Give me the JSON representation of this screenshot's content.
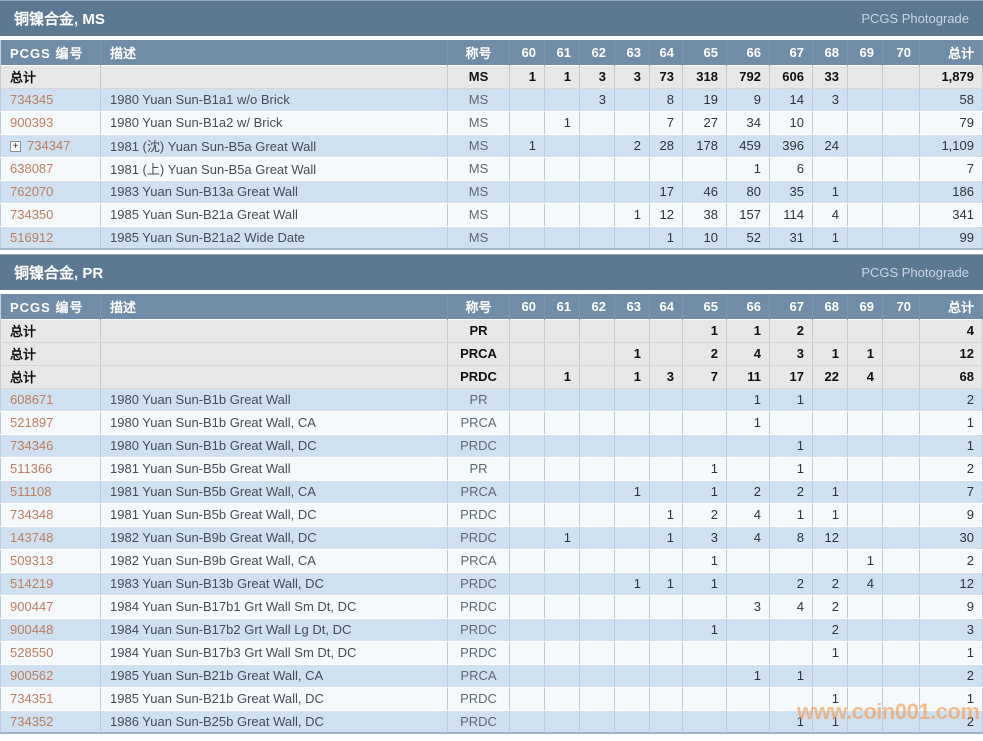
{
  "watermark": "www.coin001.com",
  "photograde_label": "PCGS Photograde",
  "total_label": "总计",
  "expand_glyph": "+",
  "colors": {
    "section_header_bg": "#5d7891",
    "column_header_bg": "#708ca6",
    "total_row_bg": "#e7e7e7",
    "row_blue": "#cfe1f0",
    "row_white": "#f5f9fc",
    "id_link": "#bc7d60",
    "watermark_orange": "#f3984d"
  },
  "columns": {
    "id": "PCGS 编号",
    "desc": "描述",
    "designation": "称号",
    "grades": [
      "60",
      "61",
      "62",
      "63",
      "64",
      "65",
      "66",
      "67",
      "68",
      "69",
      "70"
    ],
    "total": "总计"
  },
  "sections": [
    {
      "title": "铜镍合金, MS",
      "totals": [
        {
          "designation": "MS",
          "grades": [
            "1",
            "1",
            "3",
            "3",
            "73",
            "318",
            "792",
            "606",
            "33",
            "",
            ""
          ],
          "total": "1,879"
        }
      ],
      "rows": [
        {
          "id": "734345",
          "expandable": false,
          "desc": "1980 Yuan Sun-B1a1 w/o Brick",
          "designation": "MS",
          "grades": [
            "",
            "",
            "3",
            "",
            "8",
            "19",
            "9",
            "14",
            "3",
            "",
            ""
          ],
          "total": "58"
        },
        {
          "id": "900393",
          "expandable": false,
          "desc": "1980 Yuan Sun-B1a2 w/ Brick",
          "designation": "MS",
          "grades": [
            "",
            "1",
            "",
            "",
            "7",
            "27",
            "34",
            "10",
            "",
            "",
            ""
          ],
          "total": "79"
        },
        {
          "id": "734347",
          "expandable": true,
          "desc": "1981 (沈) Yuan Sun-B5a Great Wall",
          "designation": "MS",
          "grades": [
            "1",
            "",
            "",
            "2",
            "28",
            "178",
            "459",
            "396",
            "24",
            "",
            ""
          ],
          "total": "1,109"
        },
        {
          "id": "638087",
          "expandable": false,
          "desc": "1981 (上) Yuan Sun-B5a Great Wall",
          "designation": "MS",
          "grades": [
            "",
            "",
            "",
            "",
            "",
            "",
            "1",
            "6",
            "",
            "",
            ""
          ],
          "total": "7"
        },
        {
          "id": "762070",
          "expandable": false,
          "desc": "1983 Yuan Sun-B13a Great Wall",
          "designation": "MS",
          "grades": [
            "",
            "",
            "",
            "",
            "17",
            "46",
            "80",
            "35",
            "1",
            "",
            ""
          ],
          "total": "186"
        },
        {
          "id": "734350",
          "expandable": false,
          "desc": "1985 Yuan Sun-B21a Great Wall",
          "designation": "MS",
          "grades": [
            "",
            "",
            "",
            "1",
            "12",
            "38",
            "157",
            "114",
            "4",
            "",
            ""
          ],
          "total": "341"
        },
        {
          "id": "516912",
          "expandable": false,
          "desc": "1985 Yuan Sun-B21a2 Wide Date",
          "designation": "MS",
          "grades": [
            "",
            "",
            "",
            "",
            "1",
            "10",
            "52",
            "31",
            "1",
            "",
            ""
          ],
          "total": "99"
        }
      ]
    },
    {
      "title": "铜镍合金, PR",
      "totals": [
        {
          "designation": "PR",
          "grades": [
            "",
            "",
            "",
            "",
            "",
            "1",
            "1",
            "2",
            "",
            "",
            ""
          ],
          "total": "4"
        },
        {
          "designation": "PRCA",
          "grades": [
            "",
            "",
            "",
            "1",
            "",
            "2",
            "4",
            "3",
            "1",
            "1",
            ""
          ],
          "total": "12"
        },
        {
          "designation": "PRDC",
          "grades": [
            "",
            "1",
            "",
            "1",
            "3",
            "7",
            "11",
            "17",
            "22",
            "4",
            ""
          ],
          "total": "68"
        }
      ],
      "rows": [
        {
          "id": "608671",
          "expandable": false,
          "desc": "1980 Yuan Sun-B1b Great Wall",
          "designation": "PR",
          "grades": [
            "",
            "",
            "",
            "",
            "",
            "",
            "1",
            "1",
            "",
            "",
            ""
          ],
          "total": "2"
        },
        {
          "id": "521897",
          "expandable": false,
          "desc": "1980 Yuan Sun-B1b Great Wall, CA",
          "designation": "PRCA",
          "grades": [
            "",
            "",
            "",
            "",
            "",
            "",
            "1",
            "",
            "",
            "",
            ""
          ],
          "total": "1"
        },
        {
          "id": "734346",
          "expandable": false,
          "desc": "1980 Yuan Sun-B1b Great Wall, DC",
          "designation": "PRDC",
          "grades": [
            "",
            "",
            "",
            "",
            "",
            "",
            "",
            "1",
            "",
            "",
            ""
          ],
          "total": "1"
        },
        {
          "id": "511366",
          "expandable": false,
          "desc": "1981 Yuan Sun-B5b Great Wall",
          "designation": "PR",
          "grades": [
            "",
            "",
            "",
            "",
            "",
            "1",
            "",
            "1",
            "",
            "",
            ""
          ],
          "total": "2"
        },
        {
          "id": "511108",
          "expandable": false,
          "desc": "1981 Yuan Sun-B5b Great Wall, CA",
          "designation": "PRCA",
          "grades": [
            "",
            "",
            "",
            "1",
            "",
            "1",
            "2",
            "2",
            "1",
            "",
            ""
          ],
          "total": "7"
        },
        {
          "id": "734348",
          "expandable": false,
          "desc": "1981 Yuan Sun-B5b Great Wall, DC",
          "designation": "PRDC",
          "grades": [
            "",
            "",
            "",
            "",
            "1",
            "2",
            "4",
            "1",
            "1",
            "",
            ""
          ],
          "total": "9"
        },
        {
          "id": "143748",
          "expandable": false,
          "desc": "1982 Yuan Sun-B9b Great Wall, DC",
          "designation": "PRDC",
          "grades": [
            "",
            "1",
            "",
            "",
            "1",
            "3",
            "4",
            "8",
            "12",
            "",
            ""
          ],
          "total": "30"
        },
        {
          "id": "509313",
          "expandable": false,
          "desc": "1982 Yuan Sun-B9b Great Wall, CA",
          "designation": "PRCA",
          "grades": [
            "",
            "",
            "",
            "",
            "",
            "1",
            "",
            "",
            "",
            "1",
            ""
          ],
          "total": "2"
        },
        {
          "id": "514219",
          "expandable": false,
          "desc": "1983 Yuan Sun-B13b Great Wall, DC",
          "designation": "PRDC",
          "grades": [
            "",
            "",
            "",
            "1",
            "1",
            "1",
            "",
            "2",
            "2",
            "4",
            ""
          ],
          "total": "12"
        },
        {
          "id": "900447",
          "expandable": false,
          "desc": "1984 Yuan Sun-B17b1 Grt Wall Sm Dt, DC",
          "designation": "PRDC",
          "grades": [
            "",
            "",
            "",
            "",
            "",
            "",
            "3",
            "4",
            "2",
            "",
            ""
          ],
          "total": "9"
        },
        {
          "id": "900448",
          "expandable": false,
          "desc": "1984 Yuan Sun-B17b2 Grt Wall Lg Dt, DC",
          "designation": "PRDC",
          "grades": [
            "",
            "",
            "",
            "",
            "",
            "1",
            "",
            "",
            "2",
            "",
            ""
          ],
          "total": "3"
        },
        {
          "id": "528550",
          "expandable": false,
          "desc": "1984 Yuan Sun-B17b3 Grt Wall Sm Dt, DC",
          "designation": "PRDC",
          "grades": [
            "",
            "",
            "",
            "",
            "",
            "",
            "",
            "",
            "1",
            "",
            ""
          ],
          "total": "1"
        },
        {
          "id": "900562",
          "expandable": false,
          "desc": "1985 Yuan Sun-B21b Great Wall, CA",
          "designation": "PRCA",
          "grades": [
            "",
            "",
            "",
            "",
            "",
            "",
            "1",
            "1",
            "",
            "",
            ""
          ],
          "total": "2"
        },
        {
          "id": "734351",
          "expandable": false,
          "desc": "1985 Yuan Sun-B21b Great Wall, DC",
          "designation": "PRDC",
          "grades": [
            "",
            "",
            "",
            "",
            "",
            "",
            "",
            "",
            "1",
            "",
            ""
          ],
          "total": "1"
        },
        {
          "id": "734352",
          "expandable": false,
          "desc": "1986 Yuan Sun-B25b Great Wall, DC",
          "designation": "PRDC",
          "grades": [
            "",
            "",
            "",
            "",
            "",
            "",
            "",
            "1",
            "1",
            "",
            ""
          ],
          "total": "2"
        }
      ]
    }
  ]
}
